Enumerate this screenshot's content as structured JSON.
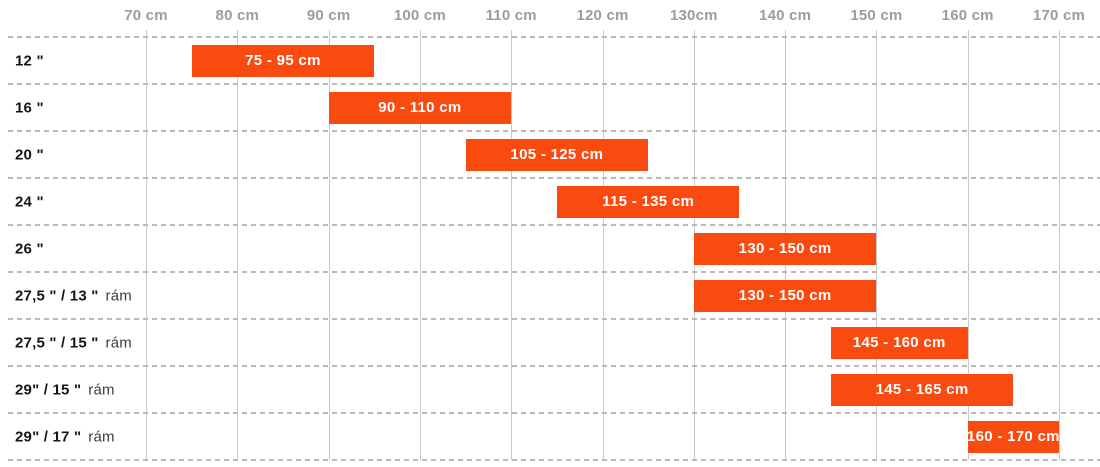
{
  "page": {
    "description": "Bike wheel size vs rider height range chart"
  },
  "colors": {
    "bar_orange": "#f94b10",
    "bar_text": "#ffffff",
    "axis_text": "#9c9c9c",
    "gridline": "#c9c9c9",
    "dashed_line": "#b9b9b9",
    "row_label": "#161616",
    "row_label_suffix": "#3d3d3d",
    "background": "#ffffff"
  },
  "chart_data": {
    "type": "bar",
    "orientation": "horizontal-range",
    "title": "",
    "xlabel": "",
    "ylabel": "",
    "unit": "cm",
    "grid": "vertical-solid-and-horizontal-dashed",
    "legend": null,
    "x_axis": {
      "min": 70,
      "max": 170,
      "ticks": [
        {
          "value": 70,
          "label": "70 cm"
        },
        {
          "value": 80,
          "label": "80 cm"
        },
        {
          "value": 90,
          "label": "90 cm"
        },
        {
          "value": 100,
          "label": "100 cm"
        },
        {
          "value": 110,
          "label": "110 cm"
        },
        {
          "value": 120,
          "label": "120 cm"
        },
        {
          "value": 130,
          "label": "130cm"
        },
        {
          "value": 140,
          "label": "140 cm"
        },
        {
          "value": 150,
          "label": "150 cm"
        },
        {
          "value": 160,
          "label": "160 cm"
        },
        {
          "value": 170,
          "label": "170 cm"
        }
      ]
    },
    "rows": [
      {
        "wheel": "12 \"",
        "frame": "",
        "start": 75,
        "end": 95,
        "bar_label": "75 - 95 cm"
      },
      {
        "wheel": "16 \"",
        "frame": "",
        "start": 90,
        "end": 110,
        "bar_label": "90 - 110 cm"
      },
      {
        "wheel": "20 \"",
        "frame": "",
        "start": 105,
        "end": 125,
        "bar_label": "105 - 125 cm"
      },
      {
        "wheel": "24 \"",
        "frame": "",
        "start": 115,
        "end": 135,
        "bar_label": "115 - 135 cm"
      },
      {
        "wheel": "26 \"",
        "frame": "",
        "start": 130,
        "end": 150,
        "bar_label": "130 - 150 cm"
      },
      {
        "wheel": "27,5 \" / 13 \"",
        "frame": "rám",
        "start": 130,
        "end": 150,
        "bar_label": "130 - 150 cm"
      },
      {
        "wheel": "27,5 \" / 15 \"",
        "frame": "rám",
        "start": 145,
        "end": 160,
        "bar_label": "145 - 160 cm"
      },
      {
        "wheel": "29\" / 15 \"",
        "frame": "rám",
        "start": 145,
        "end": 165,
        "bar_label": "145 - 165 cm"
      },
      {
        "wheel": "29\" / 17 \"",
        "frame": "rám",
        "start": 160,
        "end": 170,
        "bar_label": "160 - 170 cm"
      }
    ]
  }
}
